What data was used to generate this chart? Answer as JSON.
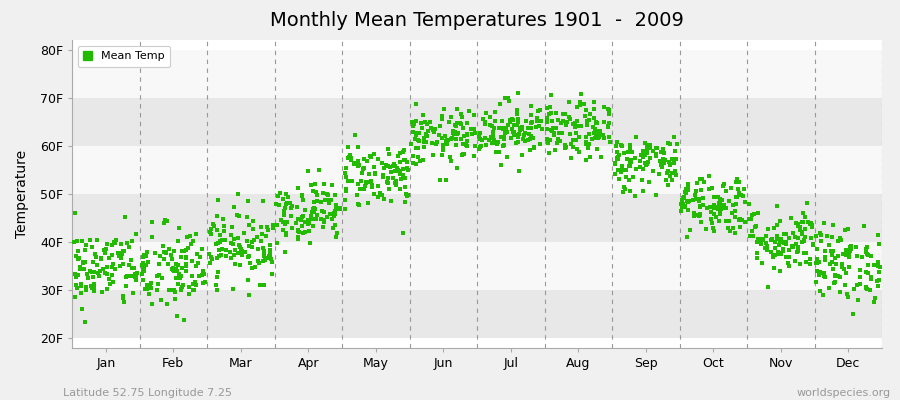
{
  "title": "Monthly Mean Temperatures 1901  -  2009",
  "ylabel": "Temperature",
  "yticks": [
    20,
    30,
    40,
    50,
    60,
    70,
    80
  ],
  "ytick_labels": [
    "20F",
    "30F",
    "40F",
    "50F",
    "60F",
    "70F",
    "80F"
  ],
  "ylim": [
    18,
    82
  ],
  "dot_color": "#22bb00",
  "dot_size": 9,
  "background_color": "#f0f0f0",
  "plot_bg_color": "#ffffff",
  "stripe_colors": [
    "#e8e8e8",
    "#f8f8f8"
  ],
  "legend_label": "Mean Temp",
  "footer_left": "Latitude 52.75 Longitude 7.25",
  "footer_right": "worldspecies.org",
  "months": [
    "Jan",
    "Feb",
    "Mar",
    "Apr",
    "May",
    "Jun",
    "Jul",
    "Aug",
    "Sep",
    "Oct",
    "Nov",
    "Dec"
  ],
  "num_years": 109,
  "mean_temps_f": [
    34.5,
    34.0,
    39.5,
    46.5,
    54.0,
    61.5,
    63.5,
    63.0,
    56.5,
    48.0,
    40.5,
    35.5
  ],
  "std_temps_f": [
    4.2,
    4.8,
    3.8,
    3.2,
    3.5,
    3.0,
    3.0,
    3.0,
    3.0,
    3.2,
    3.5,
    4.0
  ],
  "seed": 42
}
